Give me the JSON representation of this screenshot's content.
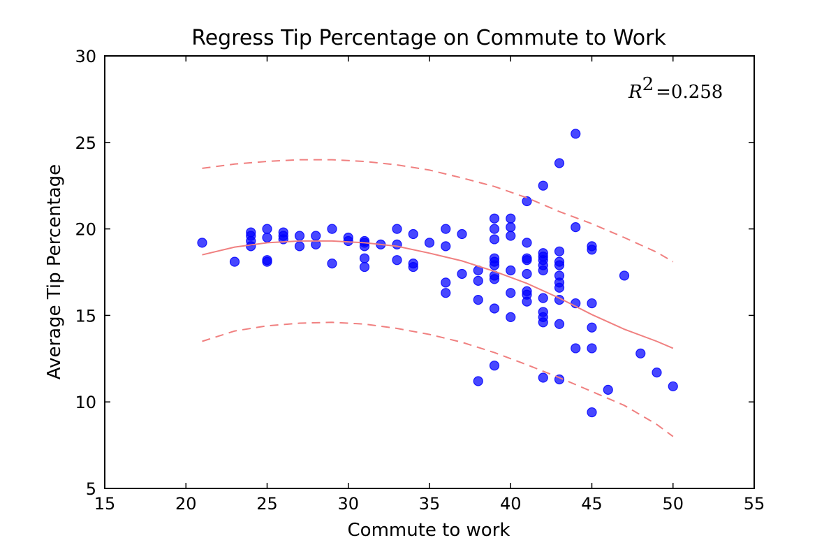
{
  "chart_data": {
    "type": "scatter",
    "title": "Regress Tip Percentage on Commute to Work",
    "xlabel": "Commute to work",
    "ylabel": "Average Tip Percentage",
    "xlim": [
      15,
      55
    ],
    "ylim": [
      5,
      30
    ],
    "xticks": [
      15,
      20,
      25,
      30,
      35,
      40,
      45,
      50,
      55
    ],
    "yticks": [
      5,
      10,
      15,
      20,
      25,
      30
    ],
    "grid": false,
    "annotation": {
      "symbol": "R",
      "superscript": "2",
      "text": "=0.258"
    },
    "colors": {
      "points": "#0000ff",
      "fit": "#f08080"
    },
    "series": [
      {
        "kind": "points",
        "points": [
          [
            21,
            19.2
          ],
          [
            23,
            18.1
          ],
          [
            24,
            19.8
          ],
          [
            24,
            19.6
          ],
          [
            24,
            19.3
          ],
          [
            24,
            19.0
          ],
          [
            25,
            20.0
          ],
          [
            25,
            19.5
          ],
          [
            25,
            18.2
          ],
          [
            25,
            18.1
          ],
          [
            26,
            19.8
          ],
          [
            26,
            19.6
          ],
          [
            26,
            19.4
          ],
          [
            27,
            19.6
          ],
          [
            27,
            19.0
          ],
          [
            28,
            19.6
          ],
          [
            28,
            19.1
          ],
          [
            29,
            20.0
          ],
          [
            29,
            18.0
          ],
          [
            30,
            19.5
          ],
          [
            30,
            19.3
          ],
          [
            31,
            19.3
          ],
          [
            31,
            19.2
          ],
          [
            31,
            19.0
          ],
          [
            31,
            18.3
          ],
          [
            31,
            17.8
          ],
          [
            32,
            19.1
          ],
          [
            33,
            20.0
          ],
          [
            33,
            19.1
          ],
          [
            33,
            18.2
          ],
          [
            34,
            19.7
          ],
          [
            34,
            18.0
          ],
          [
            34,
            17.8
          ],
          [
            35,
            19.2
          ],
          [
            36,
            20.0
          ],
          [
            36,
            19.0
          ],
          [
            36,
            16.9
          ],
          [
            36,
            16.3
          ],
          [
            37,
            19.7
          ],
          [
            37,
            17.4
          ],
          [
            38,
            17.6
          ],
          [
            38,
            17.0
          ],
          [
            38,
            15.9
          ],
          [
            38,
            11.2
          ],
          [
            39,
            20.6
          ],
          [
            39,
            20.0
          ],
          [
            39,
            19.4
          ],
          [
            39,
            18.3
          ],
          [
            39,
            18.1
          ],
          [
            39,
            17.9
          ],
          [
            39,
            17.3
          ],
          [
            39,
            17.1
          ],
          [
            39,
            15.4
          ],
          [
            39,
            12.1
          ],
          [
            40,
            20.6
          ],
          [
            40,
            20.1
          ],
          [
            40,
            19.6
          ],
          [
            40,
            17.6
          ],
          [
            40,
            16.3
          ],
          [
            40,
            14.9
          ],
          [
            41,
            21.6
          ],
          [
            41,
            19.2
          ],
          [
            41,
            18.3
          ],
          [
            41,
            18.2
          ],
          [
            41,
            17.4
          ],
          [
            41,
            16.4
          ],
          [
            41,
            16.2
          ],
          [
            41,
            15.8
          ],
          [
            42,
            22.5
          ],
          [
            42,
            18.6
          ],
          [
            42,
            18.4
          ],
          [
            42,
            18.2
          ],
          [
            42,
            17.9
          ],
          [
            42,
            17.6
          ],
          [
            42,
            16.0
          ],
          [
            42,
            15.2
          ],
          [
            42,
            14.9
          ],
          [
            42,
            14.6
          ],
          [
            42,
            11.4
          ],
          [
            43,
            23.8
          ],
          [
            43,
            18.7
          ],
          [
            43,
            18.1
          ],
          [
            43,
            17.9
          ],
          [
            43,
            17.3
          ],
          [
            43,
            16.9
          ],
          [
            43,
            16.6
          ],
          [
            43,
            15.9
          ],
          [
            43,
            14.5
          ],
          [
            43,
            11.3
          ],
          [
            44,
            25.5
          ],
          [
            44,
            20.1
          ],
          [
            44,
            15.7
          ],
          [
            44,
            13.1
          ],
          [
            45,
            19.0
          ],
          [
            45,
            18.8
          ],
          [
            45,
            15.7
          ],
          [
            45,
            14.3
          ],
          [
            45,
            13.1
          ],
          [
            45,
            9.4
          ],
          [
            46,
            10.7
          ],
          [
            47,
            17.3
          ],
          [
            48,
            12.8
          ],
          [
            49,
            11.7
          ],
          [
            50,
            10.9
          ]
        ]
      },
      {
        "kind": "fit",
        "style": "solid",
        "points": [
          [
            21,
            18.5
          ],
          [
            23,
            18.95
          ],
          [
            25,
            19.2
          ],
          [
            27,
            19.3
          ],
          [
            29,
            19.3
          ],
          [
            31,
            19.2
          ],
          [
            33,
            19.0
          ],
          [
            35,
            18.6
          ],
          [
            37,
            18.15
          ],
          [
            39,
            17.55
          ],
          [
            41,
            16.85
          ],
          [
            43,
            16.0
          ],
          [
            45,
            15.05
          ],
          [
            47,
            14.2
          ],
          [
            49,
            13.5
          ],
          [
            50,
            13.1
          ]
        ]
      },
      {
        "kind": "upper-bound",
        "style": "dashed",
        "points": [
          [
            21,
            23.5
          ],
          [
            23,
            23.75
          ],
          [
            25,
            23.9
          ],
          [
            27,
            24.0
          ],
          [
            29,
            24.0
          ],
          [
            31,
            23.9
          ],
          [
            33,
            23.7
          ],
          [
            35,
            23.4
          ],
          [
            37,
            22.95
          ],
          [
            39,
            22.45
          ],
          [
            41,
            21.8
          ],
          [
            43,
            21.0
          ],
          [
            45,
            20.3
          ],
          [
            47,
            19.5
          ],
          [
            49,
            18.65
          ],
          [
            50,
            18.1
          ]
        ]
      },
      {
        "kind": "lower-bound",
        "style": "dashed",
        "points": [
          [
            21,
            13.5
          ],
          [
            23,
            14.1
          ],
          [
            25,
            14.4
          ],
          [
            27,
            14.55
          ],
          [
            29,
            14.6
          ],
          [
            31,
            14.5
          ],
          [
            33,
            14.25
          ],
          [
            35,
            13.9
          ],
          [
            37,
            13.45
          ],
          [
            39,
            12.85
          ],
          [
            41,
            12.15
          ],
          [
            43,
            11.4
          ],
          [
            45,
            10.6
          ],
          [
            47,
            9.8
          ],
          [
            49,
            8.7
          ],
          [
            50,
            8.0
          ]
        ]
      }
    ]
  }
}
